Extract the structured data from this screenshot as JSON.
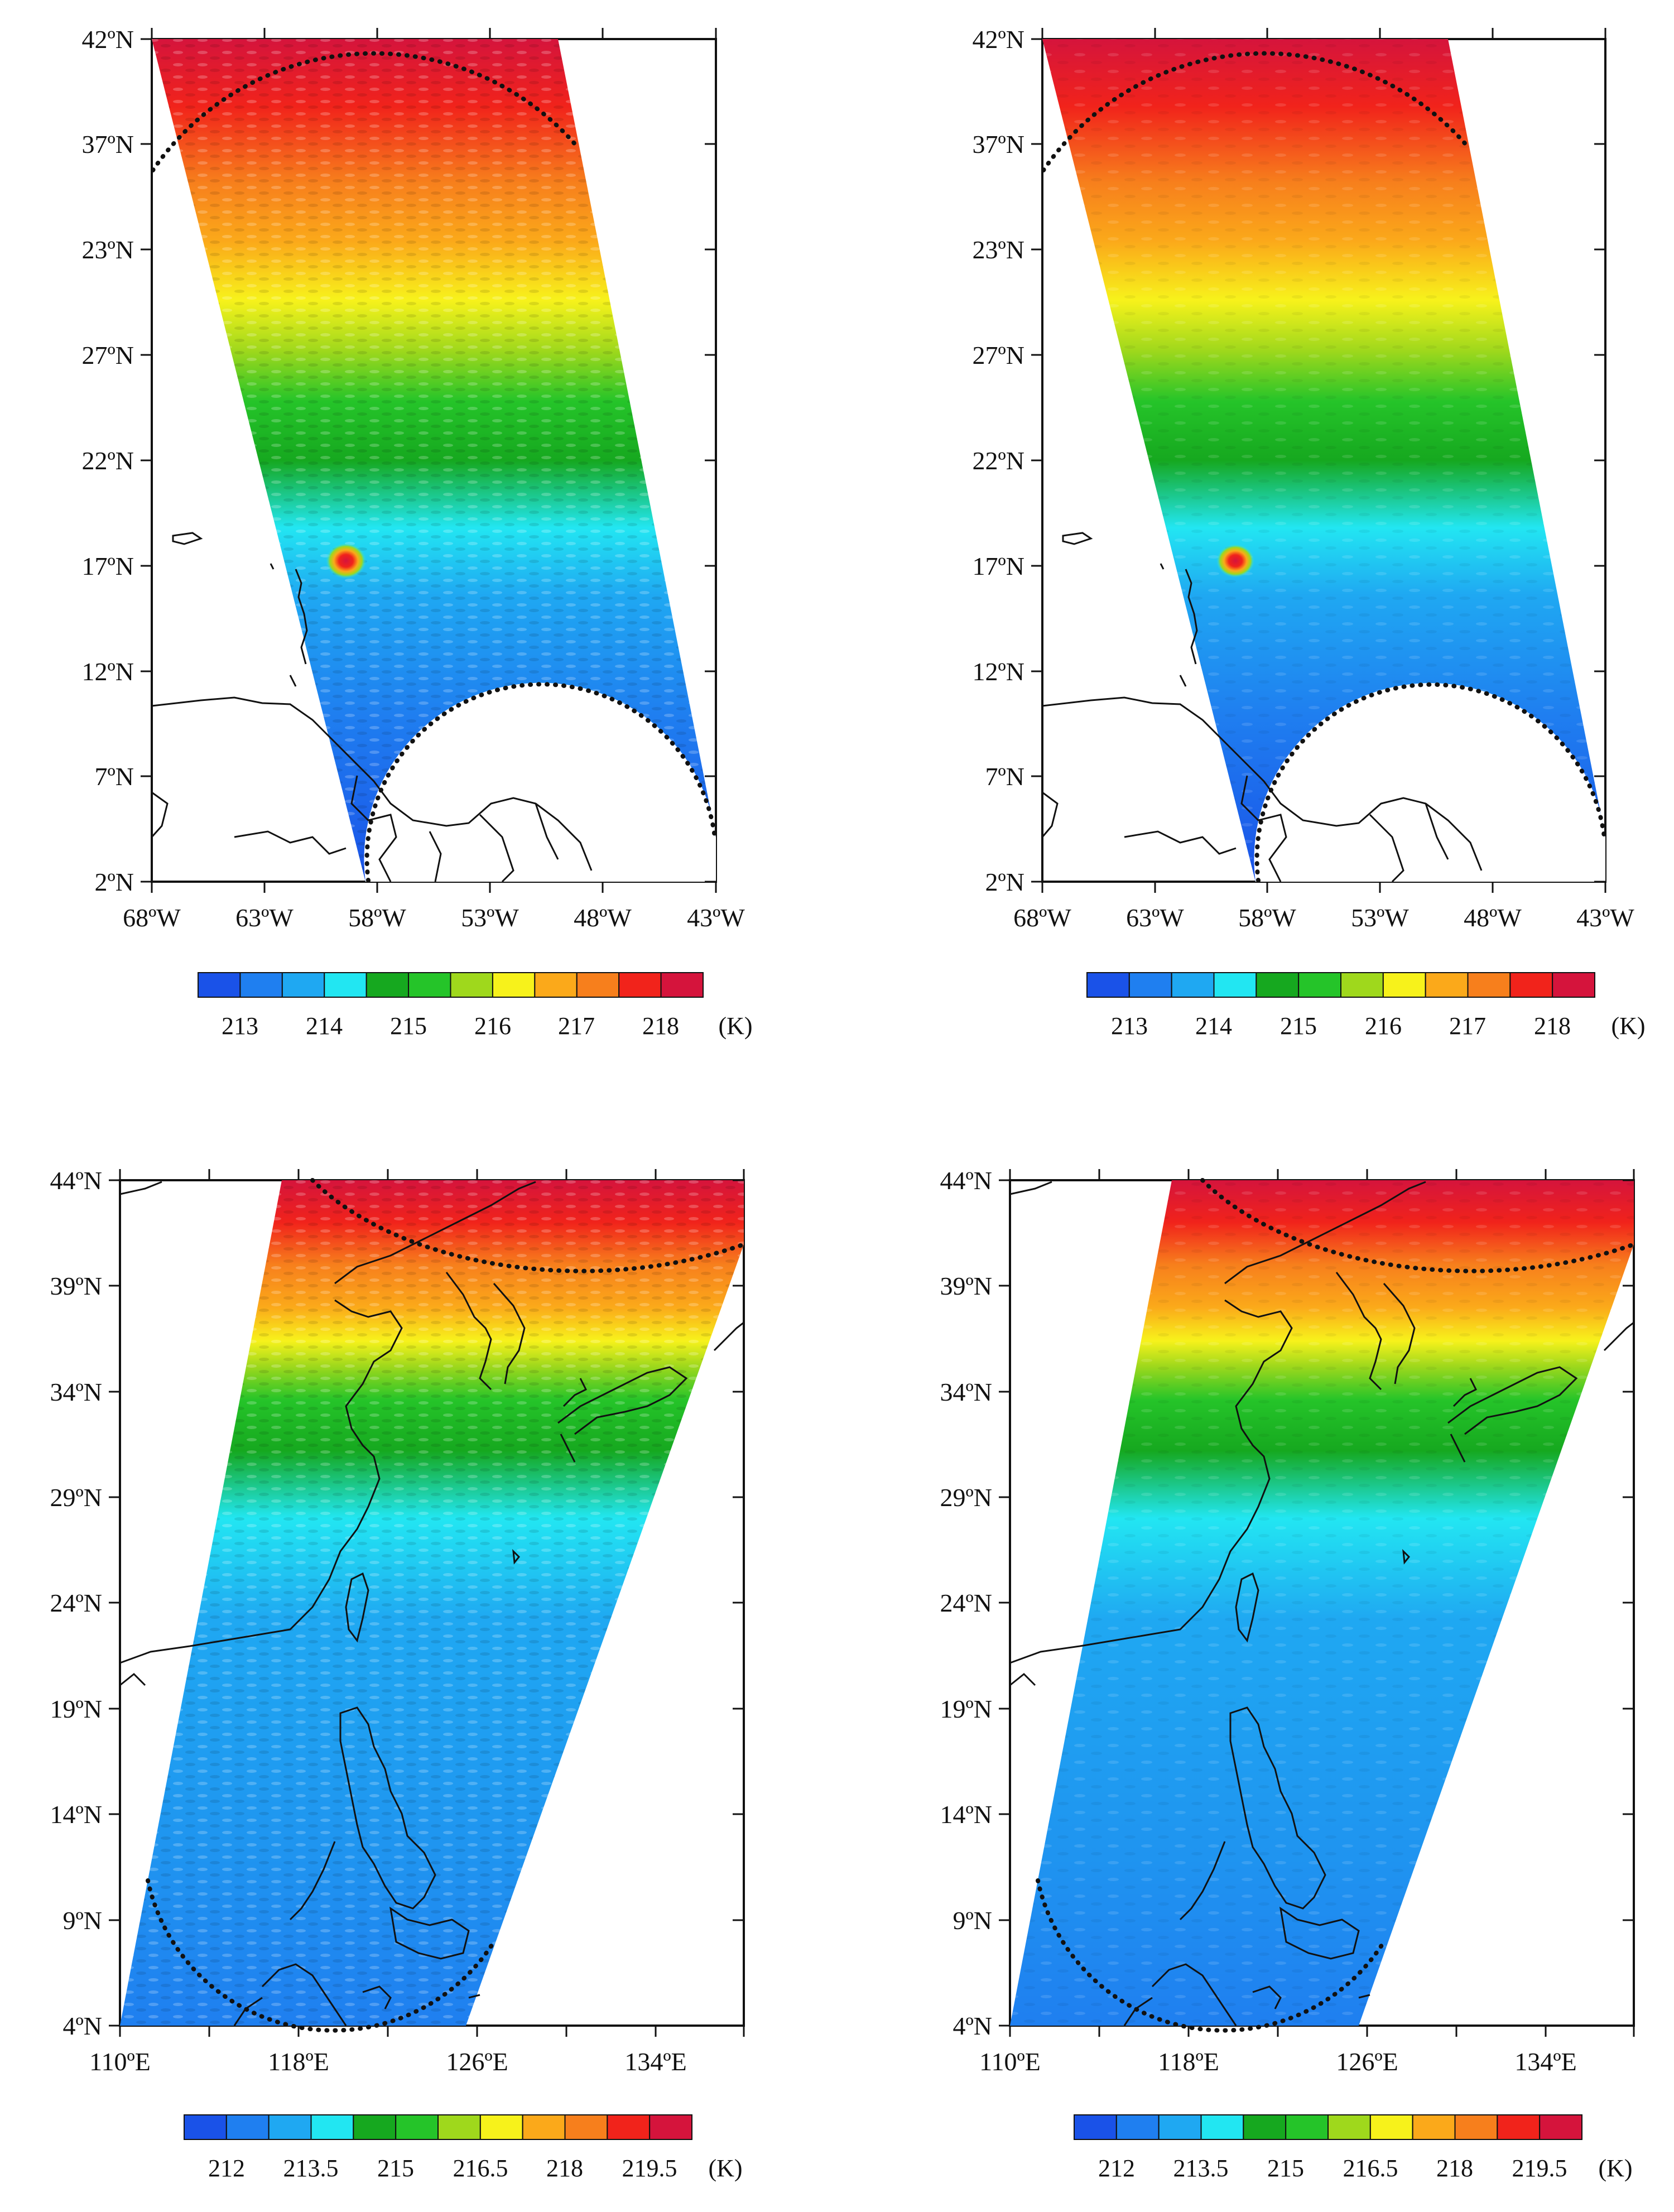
{
  "figure": {
    "panels": [
      {
        "id": "atlantic-a",
        "lat_labels": [
          "42ºN",
          "37ºN",
          "23ºN",
          "27ºN",
          "22ºN",
          "17ºN",
          "12ºN",
          "7ºN",
          "2ºN"
        ],
        "lon_labels": [
          "68ºW",
          "63ºW",
          "58ºW",
          "53ºW",
          "48ºW",
          "43ºW"
        ],
        "colorbar": {
          "ticks": [
            "213",
            "214",
            "215",
            "216",
            "217",
            "218"
          ],
          "unit": "(K)"
        },
        "speckle": "strong"
      },
      {
        "id": "atlantic-b",
        "lat_labels": [
          "42ºN",
          "37ºN",
          "23ºN",
          "27ºN",
          "22ºN",
          "17ºN",
          "12ºN",
          "7ºN",
          "2ºN"
        ],
        "lon_labels": [
          "68ºW",
          "63ºW",
          "58ºW",
          "53ºW",
          "48ºW",
          "43ºW"
        ],
        "colorbar": {
          "ticks": [
            "213",
            "214",
            "215",
            "216",
            "217",
            "218"
          ],
          "unit": "(K)"
        },
        "speckle": "weak"
      },
      {
        "id": "asia-a",
        "lat_labels": [
          "44ºN",
          "39ºN",
          "34ºN",
          "29ºN",
          "24ºN",
          "19ºN",
          "14ºN",
          "9ºN",
          "4ºN"
        ],
        "lon_labels": [
          "110ºE",
          "118ºE",
          "126ºE",
          "134ºE"
        ],
        "colorbar": {
          "ticks": [
            "212",
            "213.5",
            "215",
            "216.5",
            "218",
            "219.5"
          ],
          "unit": "(K)"
        },
        "speckle": "strong"
      },
      {
        "id": "asia-b",
        "lat_labels": [
          "44ºN",
          "39ºN",
          "34ºN",
          "29ºN",
          "24ºN",
          "19ºN",
          "14ºN",
          "9ºN",
          "4ºN"
        ],
        "lon_labels": [
          "110ºE",
          "118ºE",
          "126ºE",
          "134ºE"
        ],
        "colorbar": {
          "ticks": [
            "212",
            "213.5",
            "215",
            "216.5",
            "218",
            "219.5"
          ],
          "unit": "(K)"
        },
        "speckle": "weak"
      }
    ],
    "colorbar_colors": [
      "#1a52e8",
      "#1f7ff0",
      "#1fa8f2",
      "#22e6f2",
      "#16a81f",
      "#25c429",
      "#9fd81c",
      "#f7f21b",
      "#fba91a",
      "#f77f1c",
      "#f1231b",
      "#d5143c"
    ]
  }
}
